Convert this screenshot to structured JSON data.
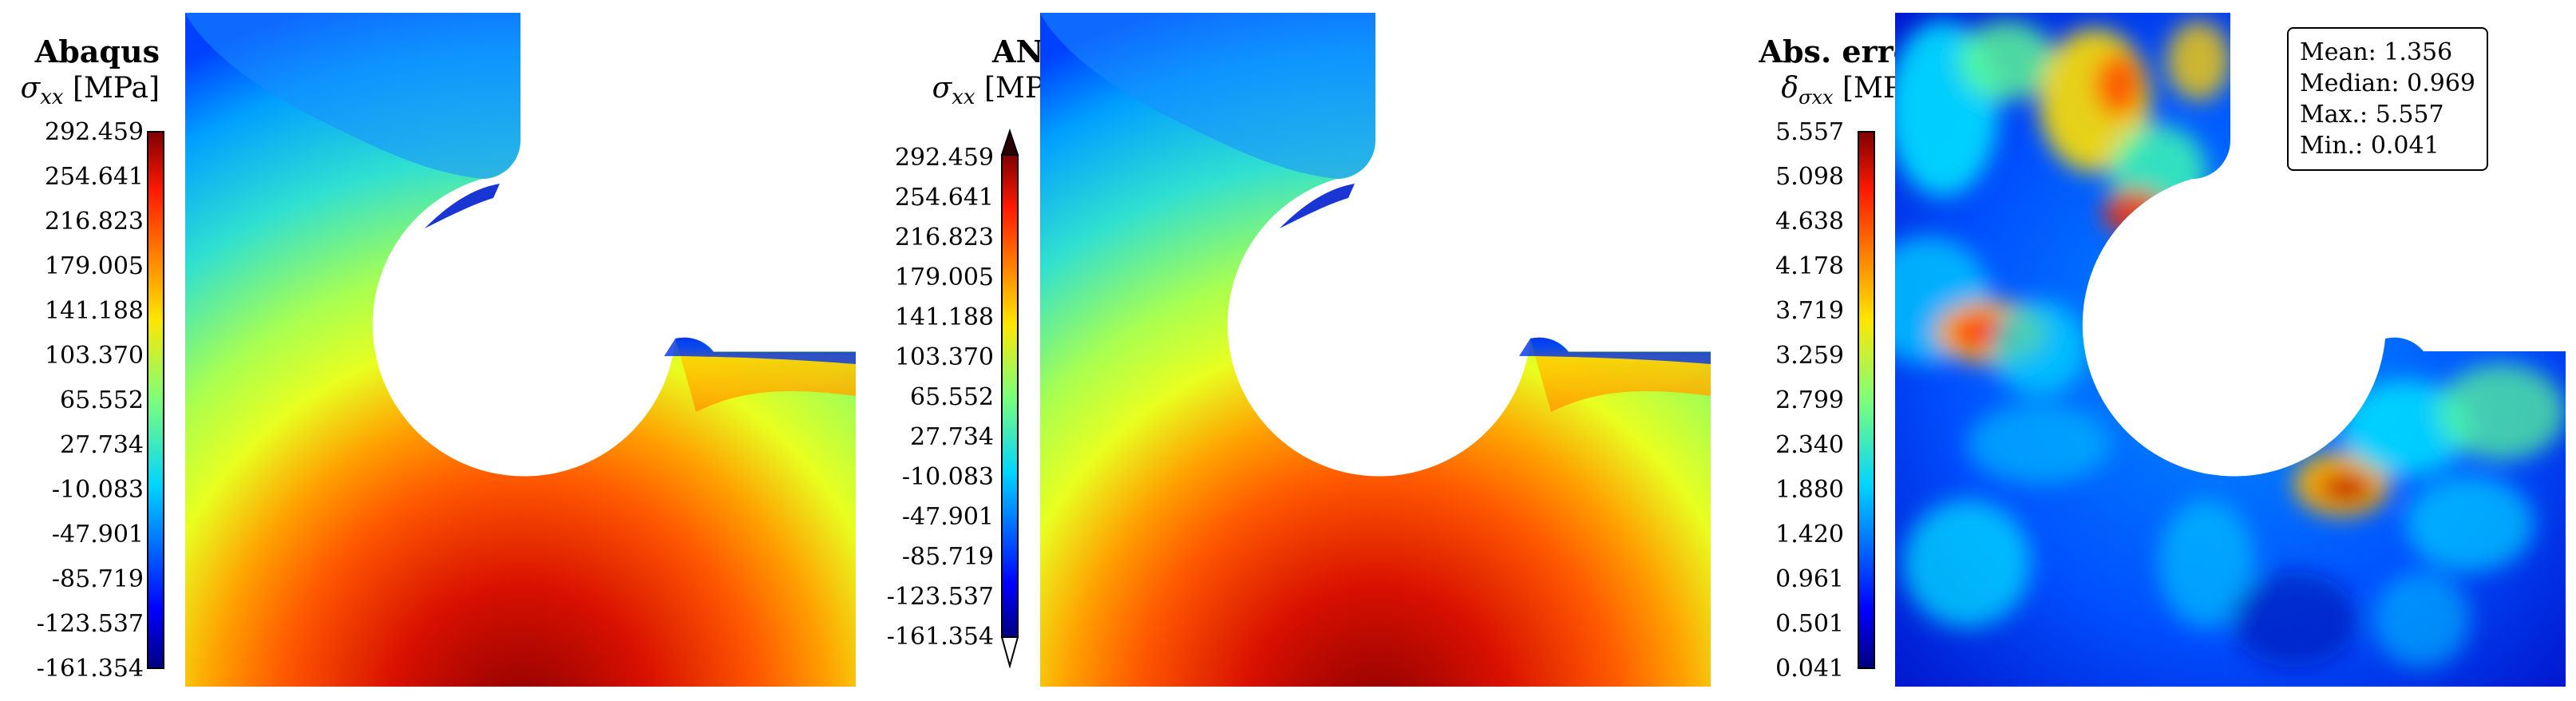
{
  "panels": [
    {
      "title": "Abaqus",
      "quantity_symbol": "σ",
      "quantity_subscript": "xx",
      "quantity_unit": " [MPa]",
      "ticks": [
        "292.459",
        "254.641",
        "216.823",
        "179.005",
        "141.188",
        "103.370",
        "65.552",
        "27.734",
        "-10.083",
        "-47.901",
        "-85.719",
        "-123.537",
        "-161.354"
      ],
      "colormap": "jet",
      "extend_arrows": false
    },
    {
      "title": "ANN",
      "quantity_symbol": "σ",
      "quantity_subscript": "xx",
      "quantity_unit": " [MPa]",
      "ticks": [
        "292.459",
        "254.641",
        "216.823",
        "179.005",
        "141.188",
        "103.370",
        "65.552",
        "27.734",
        "-10.083",
        "-47.901",
        "-85.719",
        "-123.537",
        "-161.354"
      ],
      "colormap": "jet",
      "extend_arrows": true
    },
    {
      "title": "Abs. error",
      "quantity_symbol": "δ",
      "quantity_subscript": "σxx",
      "quantity_unit": " [MPa]",
      "ticks": [
        "5.557",
        "5.098",
        "4.638",
        "4.178",
        "3.719",
        "3.259",
        "2.799",
        "2.340",
        "1.880",
        "1.420",
        "0.961",
        "0.501",
        "0.041"
      ],
      "colormap": "jet",
      "extend_arrows": false
    }
  ],
  "stats": {
    "mean": "Mean: 1.356",
    "median": "Median: 0.969",
    "max": "Max.: 5.557",
    "min": "Min.: 0.041"
  },
  "chart_data": [
    {
      "type": "heatmap",
      "title": "Abaqus",
      "colorbar_label": "σxx [MPa]",
      "clim": [
        -161.354,
        292.459
      ],
      "colorbar_ticks": [
        292.459,
        254.641,
        216.823,
        179.005,
        141.188,
        103.37,
        65.552,
        27.734,
        -10.083,
        -47.901,
        -85.719,
        -123.537,
        -161.354
      ]
    },
    {
      "type": "heatmap",
      "title": "ANN",
      "colorbar_label": "σxx [MPa]",
      "clim": [
        -161.354,
        292.459
      ],
      "colorbar_ticks": [
        292.459,
        254.641,
        216.823,
        179.005,
        141.188,
        103.37,
        65.552,
        27.734,
        -10.083,
        -47.901,
        -85.719,
        -123.537,
        -161.354
      ]
    },
    {
      "type": "heatmap",
      "title": "Abs. error",
      "colorbar_label": "δσxx [MPa]",
      "clim": [
        0.041,
        5.557
      ],
      "colorbar_ticks": [
        5.557,
        5.098,
        4.638,
        4.178,
        3.719,
        3.259,
        2.799,
        2.34,
        1.88,
        1.42,
        0.961,
        0.501,
        0.041
      ],
      "stats": {
        "mean": 1.356,
        "median": 0.969,
        "max": 5.557,
        "min": 0.041
      }
    }
  ]
}
